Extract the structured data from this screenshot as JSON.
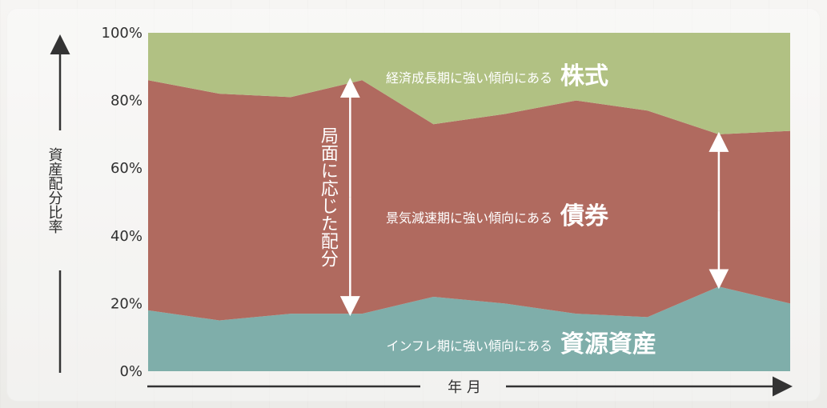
{
  "chart_data": {
    "type": "area",
    "stacked": true,
    "normalized": true,
    "x": [
      "1",
      "2",
      "3",
      "4",
      "5",
      "6",
      "7",
      "8",
      "9",
      "10"
    ],
    "ylim": [
      0,
      100
    ],
    "yticks": [
      0,
      20,
      40,
      60,
      80,
      100
    ],
    "ytick_labels": [
      "0%",
      "20%",
      "40%",
      "60%",
      "80%",
      "100%"
    ],
    "xlabel": "年 月",
    "ylabel": "資産配分比率",
    "grid": false,
    "series": [
      {
        "name": "資源資産",
        "description": "インフレ期に強い傾向にある",
        "color": "#7faeaa",
        "values": [
          18,
          15,
          17,
          17,
          22,
          20,
          17,
          16,
          25,
          20
        ]
      },
      {
        "name": "債券",
        "description": "景気減速期に強い傾向にある",
        "color": "#b06a5f",
        "values": [
          68,
          67,
          64,
          69,
          51,
          56,
          63,
          61,
          45,
          51
        ]
      },
      {
        "name": "株式",
        "description": "経済成長期に強い傾向にある",
        "color": "#b1c183",
        "values": [
          14,
          18,
          19,
          14,
          27,
          24,
          20,
          23,
          30,
          29
        ]
      }
    ],
    "annotations": [
      {
        "text": "局面に応じた配分",
        "type": "double-arrow",
        "x_index": 3
      },
      {
        "text": "",
        "type": "double-arrow",
        "x_index": 8
      }
    ]
  }
}
